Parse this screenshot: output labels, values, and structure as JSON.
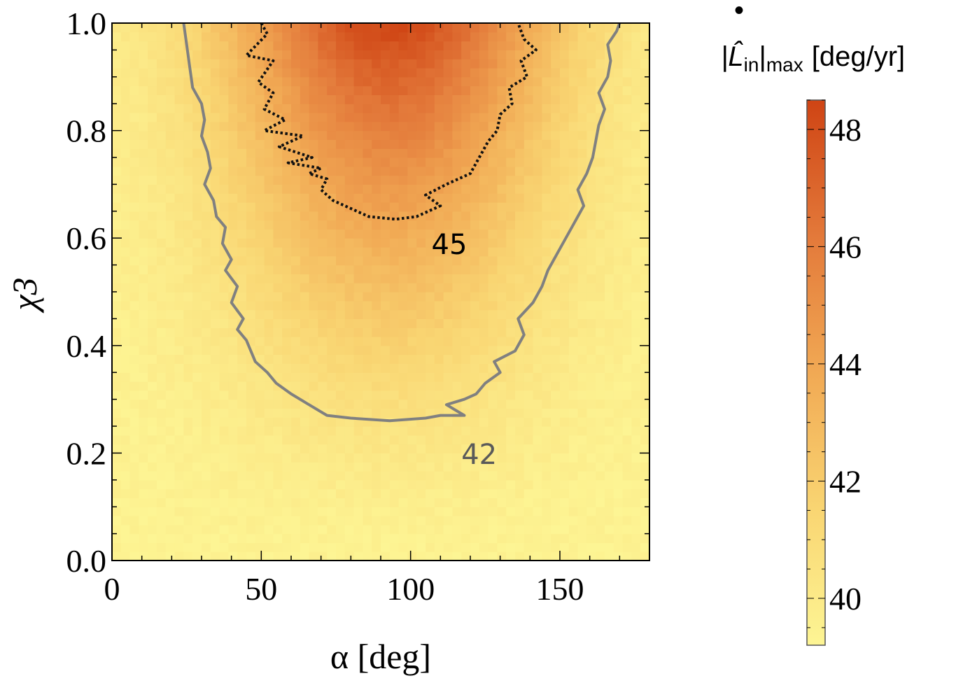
{
  "chart_data": {
    "type": "heatmap",
    "title": "",
    "xlabel": "α [deg]",
    "ylabel": "χ3",
    "xlim": [
      0,
      180
    ],
    "ylim": [
      0,
      1
    ],
    "x_ticks": [
      "0",
      "50",
      "100",
      "150"
    ],
    "y_ticks": [
      "0.0",
      "0.2",
      "0.4",
      "0.6",
      "0.8",
      "1.0"
    ],
    "x_tick_values": [
      0,
      50,
      100,
      150
    ],
    "y_tick_values": [
      0,
      0.2,
      0.4,
      0.6,
      0.8,
      1.0
    ],
    "colorbar": {
      "label_main": "|L̂",
      "label_sub1": "in",
      "label_rest": "|",
      "label_sub2": "max",
      "label_units": "[deg/yr]",
      "label_dot": "•",
      "range": [
        39.2,
        48.5
      ],
      "ticks": [
        "40",
        "42",
        "44",
        "46",
        "48"
      ],
      "tick_values": [
        40,
        42,
        44,
        46,
        48
      ],
      "colors": [
        "#fdf594",
        "#f9d572",
        "#f1a954",
        "#e3793a",
        "#cf4414"
      ]
    },
    "model": {
      "base": 39.4,
      "amplitude": 9.0,
      "center_alpha": 93,
      "alpha_width": 55,
      "chi_power": 1.5
    },
    "contours": [
      {
        "level": 42,
        "label": "42",
        "style": "solid",
        "color": "#808080",
        "label_at": [
          117,
          0.18
        ],
        "points": [
          [
            24,
            1.0
          ],
          [
            25,
            0.96
          ],
          [
            26,
            0.92
          ],
          [
            27,
            0.88
          ],
          [
            30,
            0.85
          ],
          [
            31,
            0.82
          ],
          [
            30,
            0.79
          ],
          [
            32,
            0.76
          ],
          [
            33,
            0.73
          ],
          [
            31,
            0.7
          ],
          [
            34,
            0.67
          ],
          [
            35,
            0.64
          ],
          [
            38,
            0.62
          ],
          [
            37,
            0.59
          ],
          [
            40,
            0.56
          ],
          [
            38,
            0.54
          ],
          [
            42,
            0.51
          ],
          [
            40,
            0.48
          ],
          [
            44,
            0.45
          ],
          [
            42,
            0.43
          ],
          [
            45,
            0.41
          ],
          [
            48,
            0.37
          ],
          [
            52,
            0.35
          ],
          [
            55,
            0.33
          ],
          [
            60,
            0.31
          ],
          [
            66,
            0.29
          ],
          [
            72,
            0.27
          ],
          [
            80,
            0.265
          ],
          [
            93,
            0.26
          ],
          [
            105,
            0.265
          ],
          [
            110,
            0.27
          ],
          [
            118,
            0.27
          ],
          [
            112,
            0.29
          ],
          [
            118,
            0.3
          ],
          [
            122,
            0.31
          ],
          [
            125,
            0.33
          ],
          [
            130,
            0.35
          ],
          [
            128,
            0.37
          ],
          [
            135,
            0.39
          ],
          [
            138,
            0.42
          ],
          [
            136,
            0.45
          ],
          [
            141,
            0.48
          ],
          [
            144,
            0.51
          ],
          [
            146,
            0.54
          ],
          [
            149,
            0.57
          ],
          [
            152,
            0.6
          ],
          [
            155,
            0.63
          ],
          [
            158,
            0.66
          ],
          [
            156,
            0.69
          ],
          [
            159,
            0.72
          ],
          [
            161,
            0.75
          ],
          [
            162,
            0.78
          ],
          [
            163,
            0.81
          ],
          [
            165,
            0.84
          ],
          [
            163,
            0.87
          ],
          [
            166,
            0.9
          ],
          [
            167,
            0.93
          ],
          [
            166,
            0.96
          ],
          [
            169,
            0.985
          ],
          [
            170,
            1.0
          ]
        ]
      },
      {
        "level": 45,
        "label": "45",
        "style": "dotted",
        "color": "#111111",
        "label_at": [
          107,
          0.57
        ],
        "points": [
          [
            50,
            1.0
          ],
          [
            52,
            0.98
          ],
          [
            45,
            0.94
          ],
          [
            54,
            0.93
          ],
          [
            49,
            0.89
          ],
          [
            54,
            0.87
          ],
          [
            51,
            0.84
          ],
          [
            58,
            0.82
          ],
          [
            51,
            0.8
          ],
          [
            64,
            0.79
          ],
          [
            56,
            0.77
          ],
          [
            67,
            0.75
          ],
          [
            59,
            0.74
          ],
          [
            70,
            0.73
          ],
          [
            66,
            0.72
          ],
          [
            72,
            0.71
          ],
          [
            70,
            0.69
          ],
          [
            74,
            0.67
          ],
          [
            78,
            0.66
          ],
          [
            82,
            0.65
          ],
          [
            86,
            0.64
          ],
          [
            95,
            0.635
          ],
          [
            102,
            0.64
          ],
          [
            106,
            0.65
          ],
          [
            110,
            0.66
          ],
          [
            105,
            0.68
          ],
          [
            112,
            0.7
          ],
          [
            116,
            0.71
          ],
          [
            120,
            0.72
          ],
          [
            123,
            0.75
          ],
          [
            126,
            0.78
          ],
          [
            129,
            0.8
          ],
          [
            130,
            0.83
          ],
          [
            134,
            0.85
          ],
          [
            133,
            0.88
          ],
          [
            139,
            0.9
          ],
          [
            137,
            0.93
          ],
          [
            142,
            0.95
          ],
          [
            138,
            0.97
          ],
          [
            136,
            1.0
          ]
        ]
      }
    ]
  }
}
